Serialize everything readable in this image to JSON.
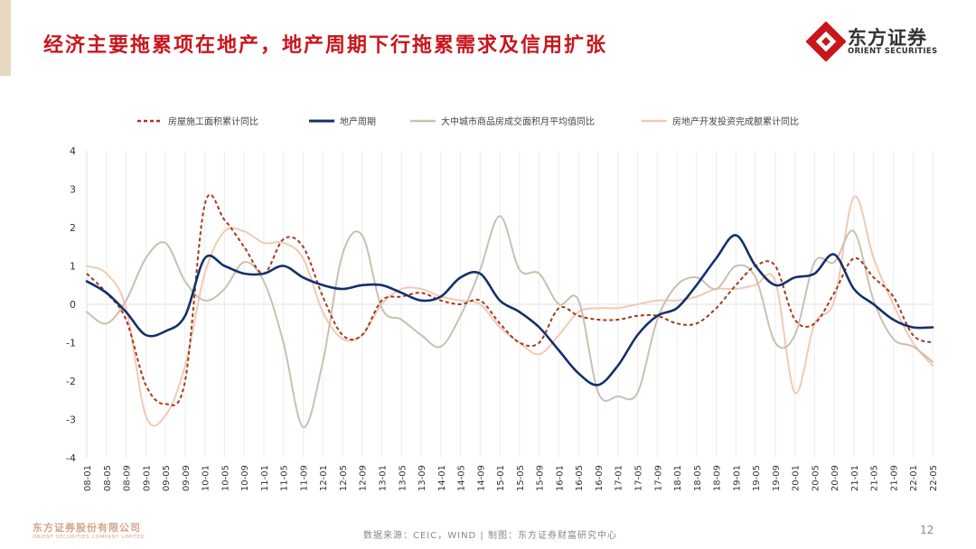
{
  "header": {
    "title": "经济主要拖累项在地产，地产周期下行拖累需求及信用扩张"
  },
  "brand": {
    "name_cn": "东方证券",
    "name_en": "ORIENT SECURITIES",
    "company_cn": "东方证券股份有限公司",
    "company_en": "ORIENT SECURITIES COMPANY LIMITED",
    "accent": "#c8161d"
  },
  "footer": {
    "source": "数据来源：CEIC，WIND  | 制图：东方证券财富研究中心",
    "page": "12"
  },
  "chart_data": {
    "type": "line",
    "title": "",
    "ylim": [
      -4,
      4
    ],
    "yticks": [
      "4",
      "3",
      "2",
      "1",
      "0",
      "-1",
      "-2",
      "-3",
      "-4"
    ],
    "grid": true,
    "legend_position": "top",
    "x": [
      "08-01",
      "08-05",
      "08-09",
      "09-01",
      "09-05",
      "09-09",
      "10-01",
      "10-05",
      "10-09",
      "11-01",
      "11-05",
      "11-09",
      "12-01",
      "12-05",
      "12-09",
      "13-01",
      "13-05",
      "13-09",
      "14-01",
      "14-05",
      "14-09",
      "15-01",
      "15-05",
      "15-09",
      "16-01",
      "16-05",
      "16-09",
      "17-01",
      "17-05",
      "17-09",
      "18-01",
      "18-05",
      "18-09",
      "19-01",
      "19-05",
      "19-09",
      "20-01",
      "20-05",
      "20-09",
      "21-01",
      "21-05",
      "21-09",
      "22-01",
      "22-05"
    ],
    "series": [
      {
        "name": "房屋施工面积累计同比",
        "color": "#a5391b",
        "style": "dashed",
        "values": [
          0.8,
          0.3,
          -0.4,
          -2.1,
          -2.6,
          -2.0,
          2.6,
          2.2,
          1.5,
          0.8,
          1.7,
          1.5,
          0.2,
          -0.8,
          -0.8,
          0.1,
          0.2,
          0.3,
          0.1,
          0.0,
          0.1,
          -0.5,
          -1.0,
          -1.0,
          -0.1,
          -0.3,
          -0.4,
          -0.4,
          -0.3,
          -0.3,
          -0.5,
          -0.5,
          -0.1,
          0.5,
          1.0,
          1.0,
          -0.4,
          -0.5,
          0.3,
          1.2,
          0.7,
          0.2,
          -0.8,
          -1.0
        ]
      },
      {
        "name": "地产周期",
        "color": "#14306b",
        "style": "solid",
        "values": [
          0.6,
          0.3,
          -0.2,
          -0.8,
          -0.7,
          -0.3,
          1.2,
          1.0,
          0.8,
          0.8,
          1.0,
          0.7,
          0.5,
          0.4,
          0.5,
          0.5,
          0.3,
          0.1,
          0.2,
          0.7,
          0.8,
          0.1,
          -0.2,
          -0.6,
          -1.2,
          -1.8,
          -2.1,
          -1.6,
          -0.8,
          -0.3,
          -0.1,
          0.5,
          1.2,
          1.8,
          1.0,
          0.5,
          0.7,
          0.8,
          1.3,
          0.4,
          0.0,
          -0.4,
          -0.6,
          -0.6
        ]
      },
      {
        "name": "大中城市商品房成交面积月平均值同比",
        "color": "#c9c0b0",
        "style": "solid",
        "values": [
          -0.2,
          -0.5,
          0.1,
          1.2,
          1.6,
          0.6,
          0.1,
          0.4,
          1.1,
          0.6,
          -1.0,
          -3.2,
          -1.5,
          1.3,
          1.8,
          -0.1,
          -0.4,
          -0.8,
          -1.1,
          -0.3,
          0.9,
          2.3,
          0.9,
          0.8,
          0.0,
          0.1,
          -2.3,
          -2.4,
          -2.3,
          -0.4,
          0.5,
          0.7,
          0.4,
          1.0,
          0.7,
          -1.0,
          -0.8,
          1.1,
          1.1,
          1.9,
          0.1,
          -0.9,
          -1.1,
          -1.5
        ]
      },
      {
        "name": "房地产开发投资完成额累计同比",
        "color": "#f2c9b4",
        "style": "solid",
        "values": [
          1.0,
          0.8,
          -0.1,
          -2.9,
          -2.9,
          -1.6,
          0.8,
          1.9,
          1.9,
          1.6,
          1.6,
          1.2,
          -0.2,
          -0.9,
          -0.8,
          0.0,
          0.4,
          0.4,
          0.2,
          0.1,
          0.0,
          -0.6,
          -1.0,
          -1.3,
          -0.8,
          -0.2,
          -0.1,
          -0.1,
          0.0,
          0.1,
          0.1,
          0.2,
          0.4,
          0.4,
          0.5,
          0.6,
          -2.3,
          -0.5,
          0.1,
          2.8,
          1.2,
          0.0,
          -1.0,
          -1.6
        ]
      }
    ]
  }
}
